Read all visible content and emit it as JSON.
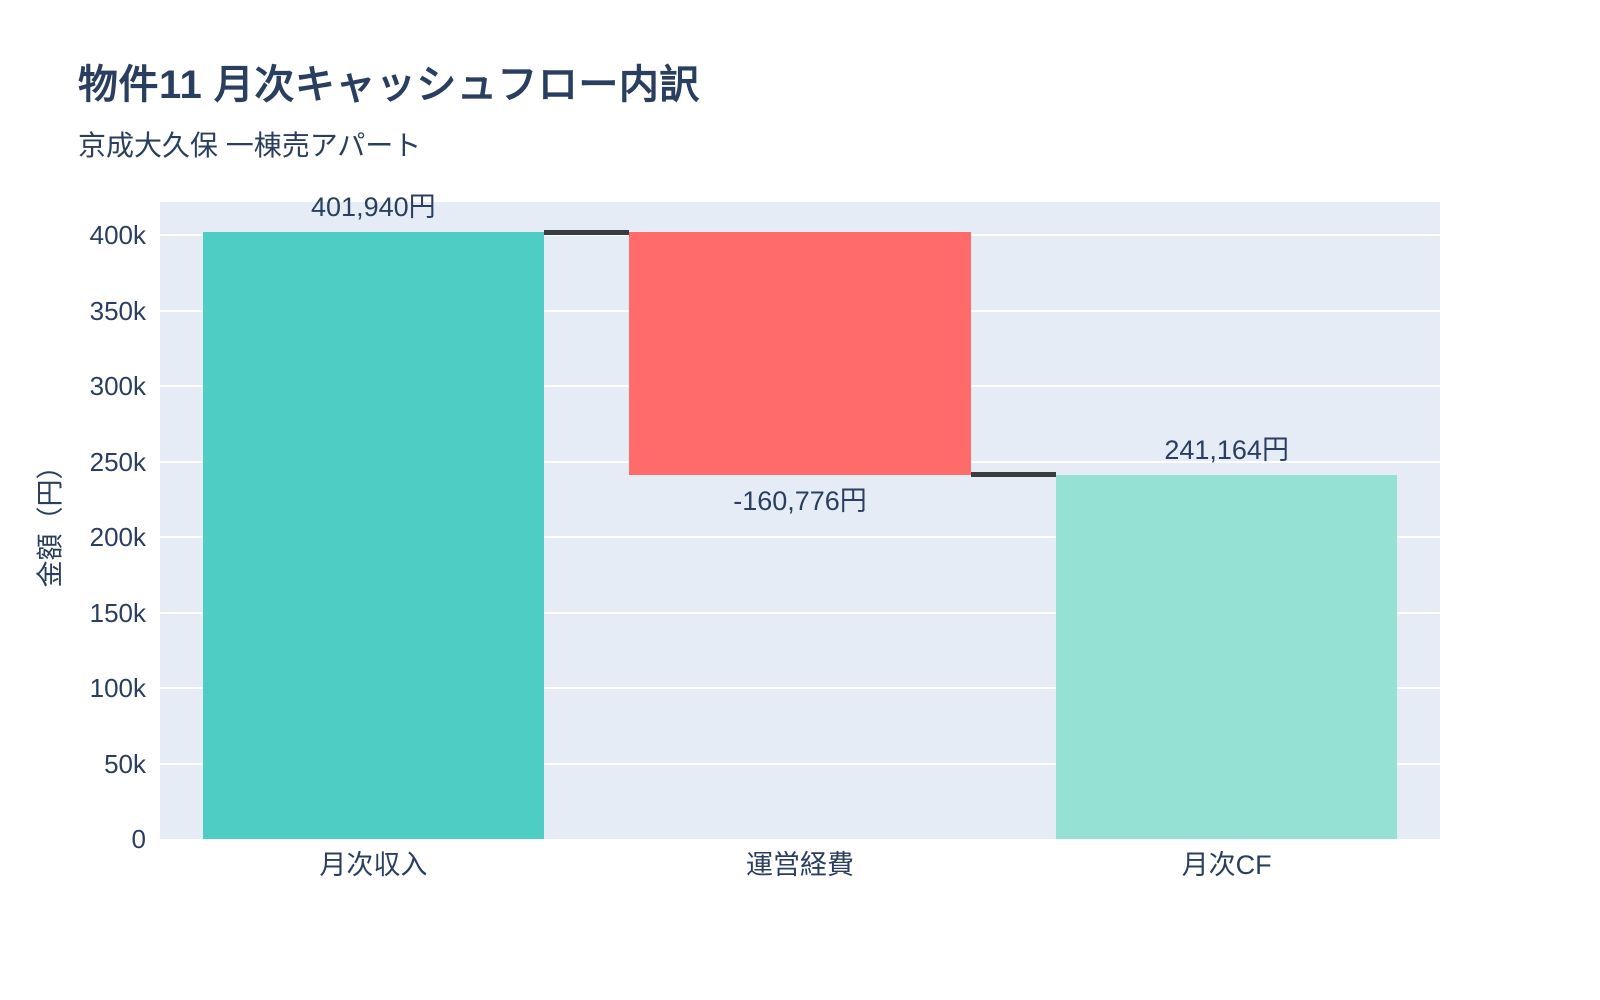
{
  "chart_data": {
    "type": "waterfall",
    "title": "物件11 月次キャッシュフロー内訳",
    "subtitle": "京成大久保 一棟売アパート",
    "ylabel": "金額（円）",
    "xlabel": "",
    "categories": [
      "月次収入",
      "運営経費",
      "月次CF"
    ],
    "measures": [
      "relative",
      "relative",
      "total"
    ],
    "values": [
      401940,
      -160776,
      241164
    ],
    "data_labels": [
      "401,940円",
      "-160,776円",
      "241,164円"
    ],
    "label_positions": [
      "above",
      "below",
      "above"
    ],
    "ylim": [
      0,
      422000
    ],
    "yticks": [
      0,
      50000,
      100000,
      150000,
      200000,
      250000,
      300000,
      350000,
      400000
    ],
    "ytick_labels": [
      "0",
      "50k",
      "100k",
      "150k",
      "200k",
      "250k",
      "300k",
      "350k",
      "400k"
    ],
    "grid": true,
    "legend_position": "none",
    "colors": {
      "increasing": "#4ECDC4",
      "decreasing": "#FF6B6B",
      "total": "#95E1D3",
      "connector": "#3A3D40",
      "plot_background": "#E5ECF6",
      "gridline": "#FFFFFF",
      "text": "#2A3F5F"
    }
  }
}
